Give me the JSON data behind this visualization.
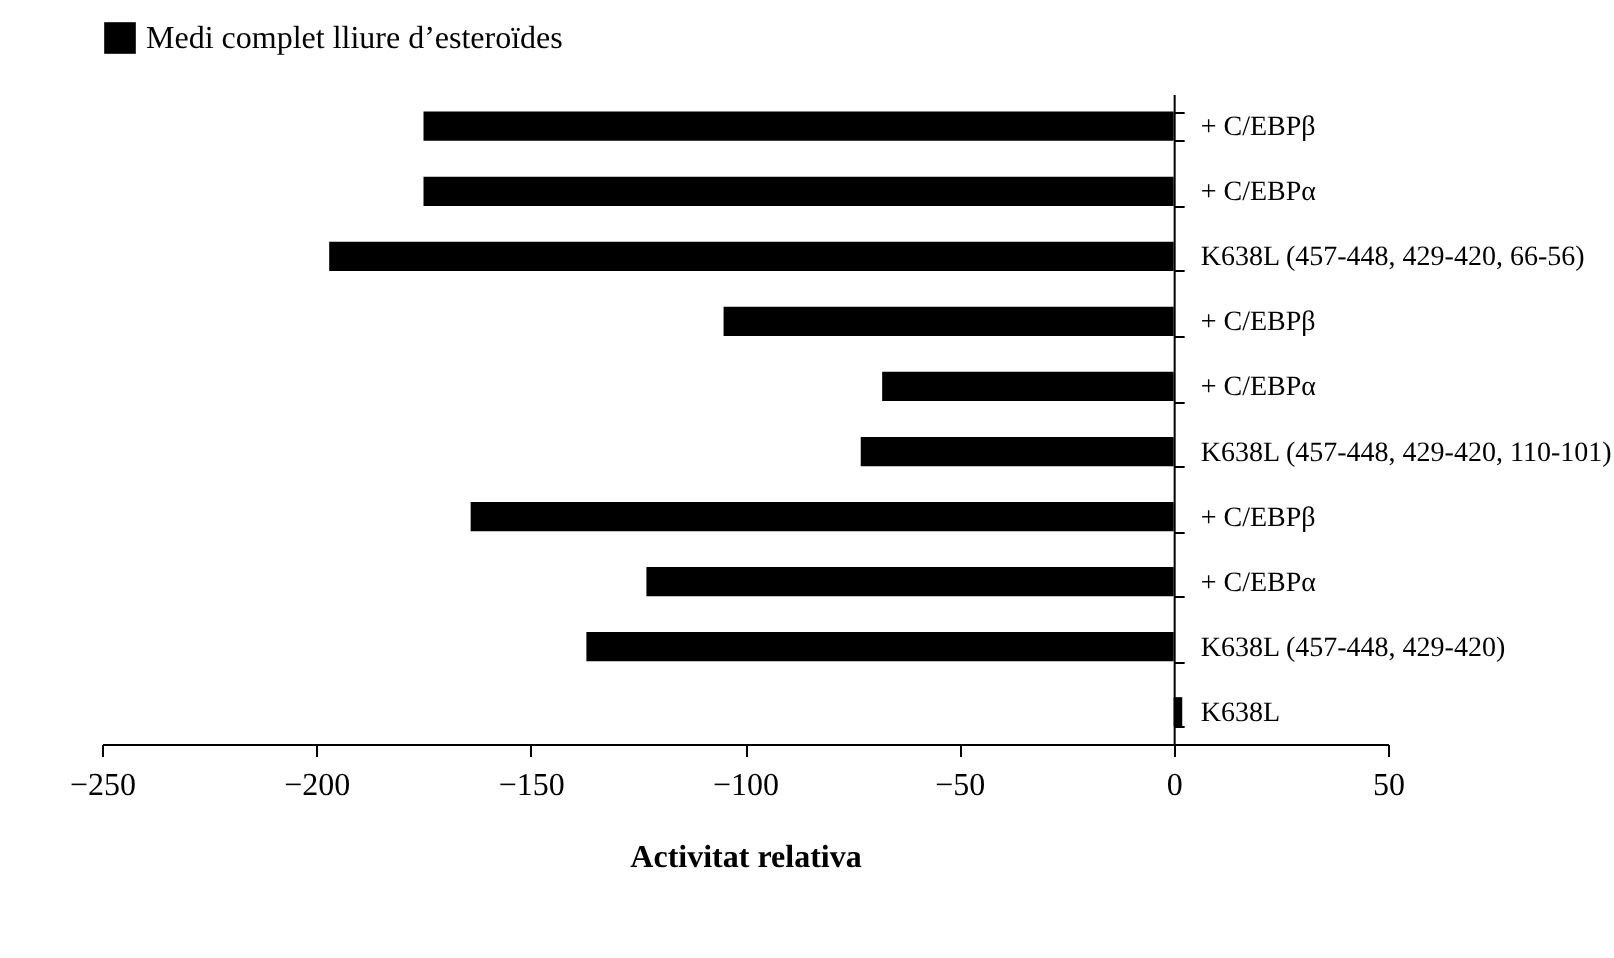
{
  "chart_data": {
    "type": "bar",
    "orientation": "horizontal",
    "xlabel": "Activitat relativa",
    "legend": "top",
    "categories": [
      "+ C/EBPβ",
      "+ C/EBPα",
      "K638L (457-448, 429-420, 66-56)",
      "+ C/EBPβ",
      "+ C/EBPα",
      "K638L (457-448, 429-420, 110-101)",
      "+ C/EBPβ",
      "+ C/EBPα",
      "K638L (457-448, 429-420)",
      "K638L"
    ],
    "series": [
      {
        "name": "Medi complet lliure d’esteroïdes",
        "color": "#000000",
        "values": [
          -175,
          -175,
          -197,
          -105,
          -68,
          -73,
          -164,
          -123,
          -137,
          2
        ]
      }
    ],
    "xlim": [
      -250,
      50
    ],
    "xticks": [
      -250,
      -200,
      -150,
      -100,
      -50,
      0,
      50
    ],
    "grid": false
  }
}
